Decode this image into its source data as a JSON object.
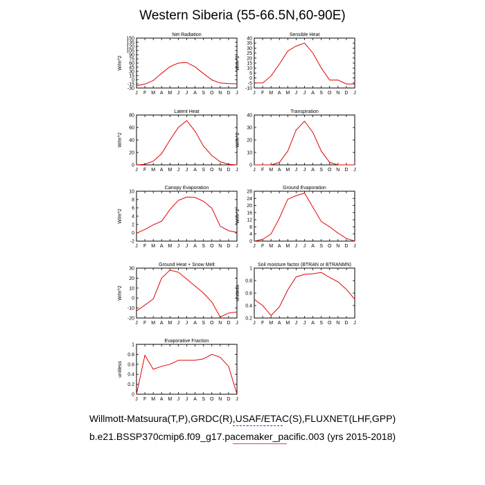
{
  "page": {
    "title": "Western Siberia (55-66.5N,60-90E)",
    "footer_line1": "Willmott-Matsuura(T,P),GRDC(R),USAF/ETAC(S),FLUXNET(LHF,GPP)",
    "footer_line2": "b.e21.BSSP370cmip6.f09_g17.pacemaker_pacific.003 (yrs 2015-2018)"
  },
  "colors": {
    "series": "#e00000",
    "axis": "#000000"
  },
  "chart_data": [
    {
      "type": "line",
      "title": "Net Radiation",
      "ylabel": "W/m^2",
      "x": [
        "J",
        "F",
        "M",
        "A",
        "M",
        "J",
        "J",
        "A",
        "S",
        "O",
        "N",
        "D",
        "J"
      ],
      "yticks": [
        -30,
        -15,
        0,
        15,
        30,
        45,
        60,
        75,
        90,
        105,
        120,
        135,
        150
      ],
      "ylim": [
        -30,
        150
      ],
      "series": [
        {
          "values": [
            -22,
            -16,
            -3,
            23,
            47,
            60,
            62,
            46,
            22,
            -1,
            -12,
            -14,
            -15
          ]
        }
      ]
    },
    {
      "type": "line",
      "title": "Sensible Heat",
      "ylabel": "W/m^2",
      "x": [
        "J",
        "F",
        "M",
        "A",
        "M",
        "J",
        "J",
        "A",
        "S",
        "O",
        "N",
        "D",
        "J"
      ],
      "yticks": [
        -10,
        -5,
        0,
        5,
        10,
        15,
        20,
        25,
        30,
        35,
        40
      ],
      "ylim": [
        -10,
        40
      ],
      "series": [
        {
          "values": [
            -5,
            -5,
            2,
            14,
            27,
            32,
            35,
            25,
            10,
            -2,
            -2,
            -6,
            -6
          ]
        }
      ]
    },
    {
      "type": "line",
      "title": "Latent Heat",
      "ylabel": "W/m^2",
      "x": [
        "J",
        "F",
        "M",
        "A",
        "M",
        "J",
        "J",
        "A",
        "S",
        "O",
        "N",
        "D",
        "J"
      ],
      "yticks": [
        0,
        20,
        40,
        60,
        80
      ],
      "ylim": [
        0,
        80
      ],
      "series": [
        {
          "values": [
            0,
            1,
            6,
            18,
            40,
            60,
            71,
            54,
            30,
            15,
            5,
            1,
            0
          ]
        }
      ]
    },
    {
      "type": "line",
      "title": "Transpiration",
      "ylabel": "W/m^2",
      "x": [
        "J",
        "F",
        "M",
        "A",
        "M",
        "J",
        "J",
        "A",
        "S",
        "O",
        "N",
        "D",
        "J"
      ],
      "yticks": [
        0,
        10,
        20,
        30,
        40
      ],
      "ylim": [
        0,
        40
      ],
      "series": [
        {
          "values": [
            0,
            0,
            0,
            2,
            11,
            28,
            35,
            26,
            11,
            2,
            0,
            0,
            0
          ]
        }
      ]
    },
    {
      "type": "line",
      "title": "Canopy Evaporation",
      "ylabel": "W/m^2",
      "x": [
        "J",
        "F",
        "M",
        "A",
        "M",
        "J",
        "J",
        "A",
        "S",
        "O",
        "N",
        "D",
        "J"
      ],
      "yticks": [
        -2,
        0,
        2,
        4,
        6,
        8,
        10
      ],
      "ylim": [
        -2,
        10
      ],
      "series": [
        {
          "values": [
            -0.1,
            0.8,
            1.9,
            2.8,
            5.6,
            7.8,
            8.6,
            8.5,
            7.6,
            5.9,
            1.6,
            0.5,
            0.1
          ]
        }
      ]
    },
    {
      "type": "line",
      "title": "Ground Evaporation",
      "ylabel": "W/m^2",
      "x": [
        "J",
        "F",
        "M",
        "A",
        "M",
        "J",
        "J",
        "A",
        "S",
        "O",
        "N",
        "D",
        "J"
      ],
      "yticks": [
        0,
        4,
        8,
        12,
        16,
        20,
        24,
        28
      ],
      "ylim": [
        0,
        28
      ],
      "series": [
        {
          "values": [
            0,
            1,
            4,
            13,
            23.5,
            25.5,
            27,
            19,
            11,
            8,
            4.5,
            1.5,
            0
          ]
        }
      ]
    },
    {
      "type": "line",
      "title": "Ground Heat + Snow Melt",
      "ylabel": "W/m^2",
      "x": [
        "J",
        "F",
        "M",
        "A",
        "M",
        "J",
        "J",
        "A",
        "S",
        "O",
        "N",
        "D",
        "J"
      ],
      "yticks": [
        -20,
        -10,
        0,
        10,
        20,
        30
      ],
      "ylim": [
        -20,
        30
      ],
      "series": [
        {
          "values": [
            -13,
            -7,
            -1,
            20,
            28,
            26,
            19,
            12,
            5,
            -4,
            -19,
            -15,
            -14
          ]
        }
      ]
    },
    {
      "type": "line",
      "title": "Soil moisture factor (BTRAN or BTRANMN)",
      "ylabel": "unitless",
      "x": [
        "J",
        "F",
        "M",
        "A",
        "M",
        "J",
        "J",
        "A",
        "S",
        "O",
        "N",
        "D",
        "J"
      ],
      "yticks": [
        0.2,
        0.4,
        0.6,
        0.8,
        1.0
      ],
      "ylim": [
        0.2,
        1.0
      ],
      "series": [
        {
          "values": [
            0.5,
            0.4,
            0.24,
            0.38,
            0.65,
            0.86,
            0.9,
            0.91,
            0.93,
            0.85,
            0.78,
            0.66,
            0.5
          ]
        }
      ]
    },
    {
      "type": "line",
      "title": "Evaporative Fraction",
      "ylabel": "unitless",
      "x": [
        "J",
        "F",
        "M",
        "A",
        "M",
        "J",
        "J",
        "A",
        "S",
        "O",
        "N",
        "D",
        "J"
      ],
      "yticks": [
        0.0,
        0.2,
        0.4,
        0.6,
        0.8,
        1.0
      ],
      "ylim": [
        0,
        1.0
      ],
      "series": [
        {
          "values": [
            0,
            0.78,
            0.5,
            0.56,
            0.6,
            0.68,
            0.68,
            0.68,
            0.71,
            0.8,
            0.74,
            0.56,
            0
          ]
        }
      ]
    }
  ]
}
